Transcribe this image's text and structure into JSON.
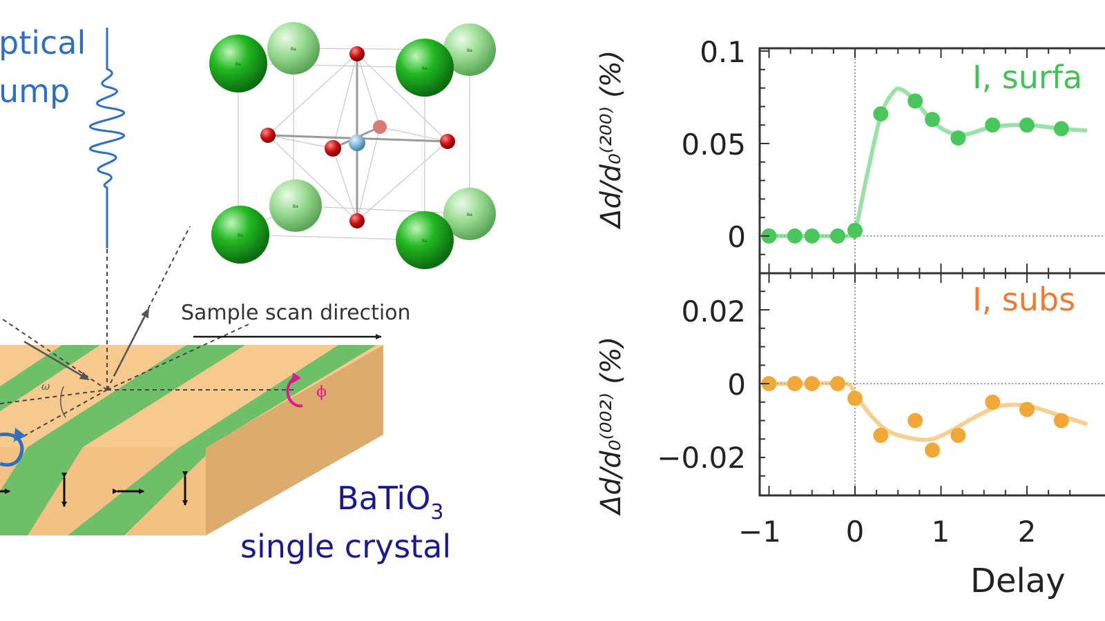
{
  "schematic": {
    "pump_label_line1": "ptical",
    "pump_label_line2": "ump",
    "scan_label": "Sample scan direction",
    "omega_label": "ω",
    "phi_label": "ϕ",
    "crystal_formula": "BaTiO",
    "crystal_formula_subscript": "3",
    "crystal_desc": "single crystal",
    "atom_label": "Ba"
  },
  "colors": {
    "pump_blue": "#2f6fc0",
    "crystal_label_blue": "#1a1a8c",
    "slab_top": "#f6c98e",
    "slab_front": "#f3c184",
    "slab_side": "#dcab6e",
    "domain_green": "#6fbf6a",
    "atom_green": "#22b822",
    "atom_light_green": "#8fd88a",
    "oxygen_red": "#cc1111",
    "titanium_blue": "#7ab4d8",
    "phi_magenta": "#e0188c",
    "series_surface": "#49c75d",
    "series_substrate": "#f0a838",
    "label_surface": "#43c057",
    "label_substrate": "#f07a34"
  },
  "chart_data": [
    {
      "type": "scatter",
      "panel": "top",
      "series": [
        {
          "name": "I, surfa",
          "x": [
            -1,
            -0.7,
            -0.5,
            -0.2,
            0,
            0.3,
            0.7,
            0.9,
            1.2,
            1.6,
            2.0,
            2.4
          ],
          "y": [
            0,
            0,
            0,
            0,
            0.003,
            0.066,
            0.073,
            0.063,
            0.053,
            0.06,
            0.06,
            0.058
          ]
        }
      ],
      "fit_curve": {
        "x": [
          -1,
          -0.5,
          -0.05,
          0,
          0.15,
          0.3,
          0.45,
          0.55,
          0.7,
          0.9,
          1.1,
          1.3,
          1.6,
          2.0,
          2.4,
          2.7
        ],
        "y": [
          0,
          0,
          0,
          0.002,
          0.035,
          0.065,
          0.078,
          0.079,
          0.073,
          0.062,
          0.056,
          0.055,
          0.059,
          0.06,
          0.058,
          0.057
        ]
      },
      "ylabel": "Δd/d₀⁽²⁰⁰⁾ (%)",
      "yticks": [
        "0.1",
        "0.05",
        "0"
      ],
      "ylim": [
        -0.012,
        0.1
      ],
      "xlim": [
        -1,
        2.7
      ]
    },
    {
      "type": "scatter",
      "panel": "bottom",
      "series": [
        {
          "name": "I, subs",
          "x": [
            -1,
            -0.7,
            -0.5,
            -0.2,
            0,
            0.3,
            0.7,
            0.9,
            1.2,
            1.6,
            2.0,
            2.4
          ],
          "y": [
            0,
            0,
            0,
            0,
            -0.004,
            -0.014,
            -0.01,
            -0.018,
            -0.014,
            -0.005,
            -0.007,
            -0.01
          ]
        }
      ],
      "fit_curve": {
        "x": [
          -1,
          -0.5,
          -0.1,
          0,
          0.2,
          0.4,
          0.7,
          0.9,
          1.1,
          1.4,
          1.7,
          2.0,
          2.3,
          2.7
        ],
        "y": [
          0,
          0,
          0,
          -0.003,
          -0.009,
          -0.013,
          -0.015,
          -0.015,
          -0.013,
          -0.009,
          -0.006,
          -0.006,
          -0.008,
          -0.011
        ]
      },
      "ylabel": "Δd/d₀⁽⁰⁰²⁾ (%)",
      "yticks": [
        "0.02",
        "0",
        "−0.02"
      ],
      "ylim": [
        -0.03,
        0.03
      ],
      "xlim": [
        -1,
        2.7
      ]
    }
  ],
  "x_axis": {
    "ticks": [
      "−1",
      "0",
      "1",
      "2"
    ],
    "label": "Delay"
  }
}
